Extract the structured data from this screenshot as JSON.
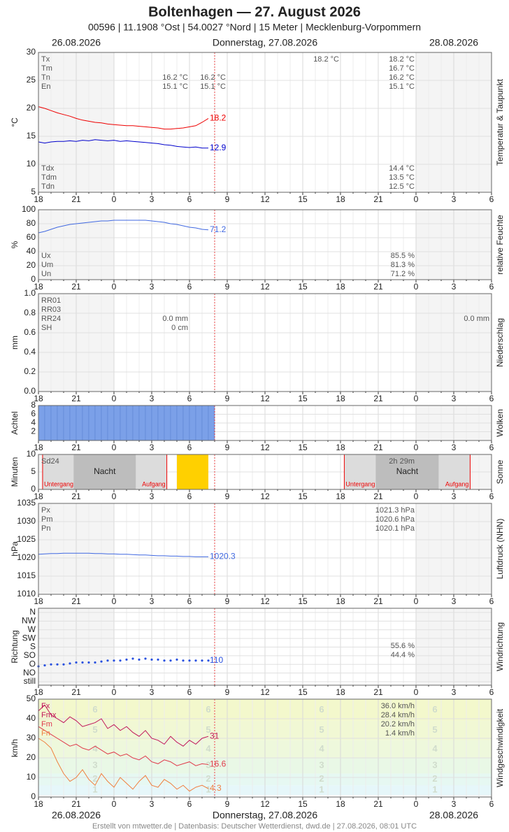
{
  "header": {
    "title": "Boltenhagen  —  27. August 2026",
    "subtitle": "00596  |  11.1908 °Ost  |  54.0027 °Nord  |  15 Meter  |  Mecklenburg-Vorpommern",
    "dates": [
      "26.08.2026",
      "Donnerstag, 27.08.2026",
      "28.08.2026"
    ],
    "footer": "Erstellt von mtwetter.de | Datenbasis: Deutscher Wetterdienst, dwd.de | 27.08.2026, 08:01 UTC"
  },
  "xaxis": {
    "xlim": [
      0,
      36
    ],
    "xticks": [
      {
        "value": 0,
        "label": "18"
      },
      {
        "value": 3,
        "label": "21"
      },
      {
        "value": 6,
        "label": "0"
      },
      {
        "value": 9,
        "label": "3"
      },
      {
        "value": 12,
        "label": "6"
      },
      {
        "value": 15,
        "label": "9"
      },
      {
        "value": 18,
        "label": "12"
      },
      {
        "value": 21,
        "label": "15"
      },
      {
        "value": 24,
        "label": "18"
      },
      {
        "value": 27,
        "label": "21"
      },
      {
        "value": 30,
        "label": "0"
      },
      {
        "value": 33,
        "label": "3"
      },
      {
        "value": 36,
        "label": "6"
      }
    ]
  },
  "chart_data": [
    {
      "type": "line",
      "ylabel": "°C",
      "side_label": "Temperatur & Taupunkt",
      "ylim": [
        5,
        30
      ],
      "yticks": [
        5,
        10,
        15,
        20,
        25,
        30
      ],
      "x": [
        0,
        0.5,
        1,
        1.5,
        2,
        2.5,
        3,
        3.5,
        4,
        4.5,
        5,
        5.5,
        6,
        6.5,
        7,
        7.5,
        8,
        8.5,
        9,
        9.5,
        10,
        10.5,
        11,
        11.5,
        12,
        12.5,
        13,
        13.5
      ],
      "series": [
        {
          "color": "#ee0000",
          "values": [
            20.3,
            20.0,
            19.6,
            19.2,
            18.9,
            18.6,
            18.2,
            17.9,
            17.7,
            17.5,
            17.4,
            17.2,
            17.1,
            17.0,
            16.9,
            16.9,
            16.8,
            16.7,
            16.6,
            16.5,
            16.3,
            16.3,
            16.4,
            16.5,
            16.7,
            16.9,
            17.5,
            18.2
          ]
        },
        {
          "color": "#0000cc",
          "values": [
            14.0,
            13.8,
            14.0,
            14.1,
            14.1,
            14.2,
            14.1,
            14.3,
            14.2,
            14.4,
            14.3,
            14.2,
            14.3,
            14.1,
            14.2,
            14.1,
            14.0,
            13.9,
            13.8,
            13.7,
            13.5,
            13.4,
            13.2,
            13.1,
            13.0,
            13.1,
            12.9,
            12.9
          ]
        }
      ],
      "stats_top": {
        "names": [
          "Tx",
          "Tm",
          "Tn",
          "En"
        ],
        "columns": [
          [
            null,
            null,
            "16.2 °C",
            "15.1 °C"
          ],
          [
            null,
            null,
            "16.2 °C",
            "15.1 °C"
          ],
          [
            "18.2 °C",
            null,
            null,
            null
          ],
          [
            "18.2 °C",
            "16.7 °C",
            "16.2 °C",
            "15.1 °C"
          ]
        ]
      },
      "stats_bottom": {
        "names": [
          "Tdx",
          "Tdm",
          "Tdn"
        ],
        "columns": [
          [
            "14.4 °C",
            "13.5 °C",
            "12.5 °C"
          ]
        ]
      }
    },
    {
      "type": "line",
      "ylabel": "%",
      "side_label": "relative Feuchte",
      "ylim": [
        0,
        100
      ],
      "yticks": [
        0,
        20,
        40,
        60,
        80,
        100
      ],
      "x": [
        0,
        0.5,
        1,
        1.5,
        2,
        2.5,
        3,
        3.5,
        4,
        4.5,
        5,
        5.5,
        6,
        6.5,
        7,
        7.5,
        8,
        8.5,
        9,
        9.5,
        10,
        10.5,
        11,
        11.5,
        12,
        12.5,
        13,
        13.5
      ],
      "series": [
        {
          "color": "#4169e1",
          "values": [
            67,
            69,
            72,
            75,
            77,
            79,
            80,
            81,
            82,
            83,
            84,
            84,
            85,
            85,
            85,
            85,
            85,
            85,
            84,
            83,
            82,
            80,
            79,
            77,
            75,
            74,
            72,
            71.2
          ]
        }
      ],
      "stats_bottom": {
        "names": [
          "Ux",
          "Um",
          "Un"
        ],
        "columns": [
          [
            "85.5 %",
            "81.3 %",
            "71.2 %"
          ]
        ]
      }
    },
    {
      "type": "line",
      "ylabel": "mm",
      "side_label": "Niederschlag",
      "ylim": [
        0,
        1
      ],
      "yticks": [
        {
          "value": 0,
          "label": "0.0"
        },
        0.2,
        0.4,
        0.6,
        0.8,
        {
          "value": 1,
          "label": "1.0"
        }
      ],
      "series": [],
      "stats_top": {
        "names": [
          "RR01",
          "RR03",
          "RR24",
          "SH"
        ],
        "columns": [
          [
            null,
            null,
            "0.0 mm",
            "0 cm"
          ],
          [
            null,
            null,
            "0.0 mm",
            null
          ]
        ]
      }
    },
    {
      "type": "bar",
      "ylabel": "Achtel",
      "side_label": "Wolken",
      "ylim": [
        0,
        8
      ],
      "yticks": [
        2,
        4,
        6,
        8
      ],
      "x": [
        0,
        0.5,
        1,
        1.5,
        2,
        2.5,
        3,
        3.5,
        4,
        4.5,
        5,
        5.5,
        6,
        6.5,
        7,
        7.5,
        8,
        8.5,
        9,
        9.5,
        10,
        10.5,
        11,
        11.5,
        12,
        12.5,
        13,
        13.5
      ],
      "bar_width": 0.5,
      "color": "#7ba0e8",
      "values": [
        8,
        8,
        8,
        8,
        8,
        8,
        8,
        8,
        8,
        8,
        8,
        8,
        8,
        8,
        8,
        8,
        8,
        8,
        8,
        8,
        8,
        8,
        8,
        8,
        8,
        8,
        8,
        8
      ]
    },
    {
      "type": "sun",
      "ylabel": "Minuten",
      "side_label": "Sonne",
      "ylim": [
        0,
        10
      ],
      "yticks": [
        0,
        5,
        10
      ],
      "x": [
        0,
        0.5,
        1,
        1.5,
        2,
        2.5,
        3,
        3.5,
        4,
        4.5,
        5,
        5.5,
        6,
        6.5,
        7,
        7.5,
        8,
        8.5,
        9,
        9.5,
        10,
        10.5,
        11,
        11.5,
        12,
        12.5,
        13,
        13.5
      ],
      "bar_width": 0.5,
      "color": "#ffd000",
      "values": [
        0,
        0,
        0,
        0,
        0,
        0,
        0,
        0,
        0,
        0,
        0,
        0,
        0,
        0,
        0,
        0,
        0,
        0,
        0,
        0,
        0,
        0,
        10,
        10,
        10,
        10,
        10,
        0
      ],
      "night": {
        "label": "Nacht",
        "start_label": "Untergang",
        "end_label": "Aufgang",
        "intervals": [
          [
            0.33,
            10.2
          ],
          [
            24.3,
            34.3
          ]
        ]
      },
      "stats_top": {
        "names": [
          "Sd24"
        ],
        "columns": [
          [
            "2h 29m"
          ]
        ]
      }
    },
    {
      "type": "line",
      "ylabel": "hPa",
      "side_label": "Luftdruck (NHN)",
      "ylim": [
        1010,
        1035
      ],
      "yticks": [
        1010,
        1015,
        1020,
        1025,
        1030,
        1035
      ],
      "x": [
        0,
        0.5,
        1,
        1.5,
        2,
        2.5,
        3,
        3.5,
        4,
        4.5,
        5,
        5.5,
        6,
        6.5,
        7,
        7.5,
        8,
        8.5,
        9,
        9.5,
        10,
        10.5,
        11,
        11.5,
        12,
        12.5,
        13,
        13.5
      ],
      "series": [
        {
          "color": "#4169e1",
          "values": [
            1021.0,
            1021.1,
            1021.2,
            1021.2,
            1021.3,
            1021.3,
            1021.3,
            1021.3,
            1021.3,
            1021.2,
            1021.2,
            1021.1,
            1021.1,
            1021.0,
            1021.0,
            1020.9,
            1020.8,
            1020.8,
            1020.7,
            1020.6,
            1020.6,
            1020.5,
            1020.5,
            1020.4,
            1020.4,
            1020.3,
            1020.3,
            1020.3
          ]
        }
      ],
      "stats_top": {
        "names": [
          "Px",
          "Pm",
          "Pn"
        ],
        "columns": [
          [
            "1021.3 hPa",
            "1020.6 hPa",
            "1020.1 hPa"
          ]
        ]
      }
    },
    {
      "type": "scatter",
      "ylabel": "Richtung",
      "side_label": "Windrichtung",
      "ylim": [
        -18,
        382
      ],
      "yticks": [
        {
          "value": 360,
          "label": "N"
        },
        {
          "value": 315,
          "label": "NW"
        },
        {
          "value": 270,
          "label": "W"
        },
        {
          "value": 225,
          "label": "SW"
        },
        {
          "value": 180,
          "label": "S"
        },
        {
          "value": 135,
          "label": "SO"
        },
        {
          "value": 90,
          "label": "O"
        },
        {
          "value": 45,
          "label": "NO"
        },
        {
          "value": 0,
          "label": "still"
        }
      ],
      "x": [
        0,
        0.5,
        1,
        1.5,
        2,
        2.5,
        3,
        3.5,
        4,
        4.5,
        5,
        5.5,
        6,
        6.5,
        7,
        7.5,
        8,
        8.5,
        9,
        9.5,
        10,
        10.5,
        11,
        11.5,
        12,
        12.5,
        13,
        13.5
      ],
      "series": [
        {
          "color": "#2850e0",
          "values": [
            80,
            85,
            90,
            90,
            90,
            95,
            100,
            100,
            100,
            100,
            105,
            110,
            110,
            110,
            115,
            120,
            115,
            120,
            115,
            115,
            110,
            110,
            115,
            110,
            110,
            110,
            110,
            110
          ]
        }
      ],
      "stats_bottom": {
        "names": [
          null,
          null
        ],
        "columns": [
          [
            "55.6 %",
            "44.4 %"
          ]
        ]
      }
    },
    {
      "type": "wind",
      "ylabel": "km/h",
      "side_label": "Windgeschwindigkeit",
      "ylim": [
        0,
        50
      ],
      "yticks": [
        0,
        10,
        20,
        30,
        40,
        50
      ],
      "beaufort": {
        "levels": [
          1,
          2,
          3,
          4,
          5,
          6
        ],
        "bounds": [
          1,
          6,
          12,
          20,
          29,
          39,
          50
        ]
      },
      "x": [
        0,
        0.5,
        1,
        1.5,
        2,
        2.5,
        3,
        3.5,
        4,
        4.5,
        5,
        5.5,
        6,
        6.5,
        7,
        7.5,
        8,
        8.5,
        9,
        9.5,
        10,
        10.5,
        11,
        11.5,
        12,
        12.5,
        13,
        13.5
      ],
      "series": [
        {
          "color": "#c0155a",
          "values": [
            44,
            47,
            42,
            40,
            38,
            41,
            39,
            36,
            37,
            38,
            40,
            35,
            37,
            34,
            36,
            33,
            31,
            34,
            30,
            29,
            27,
            31,
            28,
            26,
            29,
            27,
            30,
            31.0
          ]
        },
        {
          "color": "#e03a4a",
          "values": [
            36,
            34,
            32,
            30,
            28,
            26,
            27,
            25,
            24,
            26,
            24,
            22,
            23,
            21,
            22,
            20,
            19,
            21,
            18,
            17,
            19,
            18,
            16,
            17,
            18,
            16,
            17,
            16.6
          ]
        },
        {
          "color": "#f08040",
          "values": [
            30,
            28,
            25,
            18,
            12,
            8,
            10,
            14,
            9,
            6,
            12,
            8,
            5,
            10,
            7,
            4,
            8,
            11,
            6,
            5,
            9,
            7,
            4,
            6,
            3,
            5,
            6,
            4.3
          ]
        }
      ],
      "stats_top": {
        "names": [
          "Fx",
          "Fmx",
          "Fm",
          "Fn"
        ],
        "colors": [
          "#c0155a",
          "#c0155a",
          "#e03a4a",
          "#f08040"
        ],
        "columns": [
          [
            "36.0 km/h",
            "28.4 km/h",
            "20.2 km/h",
            "1.4 km/h"
          ]
        ]
      }
    }
  ]
}
